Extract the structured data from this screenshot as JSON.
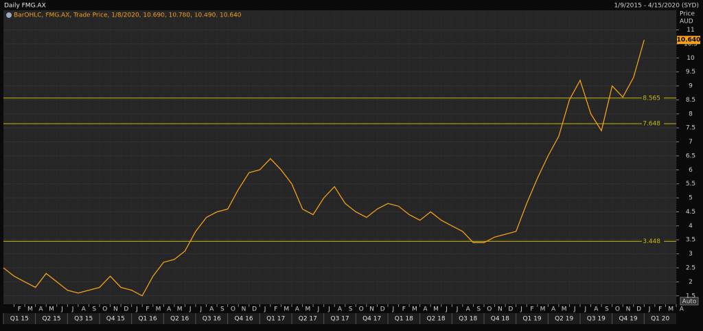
{
  "chart_data": {
    "type": "line",
    "title": "Daily FMG.AX",
    "date_range": "1/9/2015 - 4/15/2020 (SYD)",
    "legend_text": "BarOHLC, FMG.AX, Trade Price, 1/8/2020, 10.690, 10.780, 10.490, 10.640",
    "y_label": "Price",
    "y_unit": "AUD",
    "button": "Auto",
    "color": "#f5a01a",
    "level_color": "#c9b800",
    "grid": true,
    "x": [
      "2015-01",
      "2015-02",
      "2015-03",
      "2015-04",
      "2015-05",
      "2015-06",
      "2015-07",
      "2015-08",
      "2015-09",
      "2015-10",
      "2015-11",
      "2015-12",
      "2016-01",
      "2016-02",
      "2016-03",
      "2016-04",
      "2016-05",
      "2016-06",
      "2016-07",
      "2016-08",
      "2016-09",
      "2016-10",
      "2016-11",
      "2016-12",
      "2017-01",
      "2017-02",
      "2017-03",
      "2017-04",
      "2017-05",
      "2017-06",
      "2017-07",
      "2017-08",
      "2017-09",
      "2017-10",
      "2017-11",
      "2017-12",
      "2018-01",
      "2018-02",
      "2018-03",
      "2018-04",
      "2018-05",
      "2018-06",
      "2018-07",
      "2018-08",
      "2018-09",
      "2018-10",
      "2018-11",
      "2018-12",
      "2019-01",
      "2019-02",
      "2019-03",
      "2019-04",
      "2019-05",
      "2019-06",
      "2019-07",
      "2019-08",
      "2019-09",
      "2019-10",
      "2019-11",
      "2019-12",
      "2020-01"
    ],
    "values": [
      2.5,
      2.2,
      2.0,
      1.8,
      2.3,
      2.0,
      1.7,
      1.6,
      1.7,
      1.8,
      2.2,
      1.8,
      1.7,
      1.5,
      2.2,
      2.7,
      2.8,
      3.1,
      3.8,
      4.3,
      4.5,
      4.6,
      5.3,
      5.9,
      6.0,
      6.4,
      6.0,
      5.5,
      4.6,
      4.4,
      5.0,
      5.4,
      4.8,
      4.5,
      4.3,
      4.6,
      4.8,
      4.7,
      4.4,
      4.2,
      4.5,
      4.2,
      4.0,
      3.8,
      3.4,
      3.4,
      3.6,
      3.7,
      3.8,
      4.8,
      5.7,
      6.5,
      7.2,
      8.5,
      9.2,
      8.0,
      7.4,
      9.0,
      8.6,
      9.3,
      10.64
    ],
    "value_labels": [
      null,
      null,
      null,
      null,
      null,
      null,
      null,
      null,
      null,
      null,
      null,
      null,
      null,
      null,
      null,
      null,
      null,
      null,
      null,
      null,
      null,
      null,
      null,
      null,
      null,
      null,
      null,
      null,
      null,
      null,
      null,
      null,
      null,
      null,
      null,
      null,
      null,
      null,
      null,
      null,
      null,
      null,
      null,
      null,
      null,
      null,
      null,
      null,
      null,
      null,
      null,
      null,
      null,
      null,
      null,
      null,
      null,
      null,
      null,
      null,
      "10.640"
    ],
    "levels": [
      8.565,
      7.648,
      3.448
    ],
    "ylim": [
      1.2,
      11.7
    ],
    "yticks": [
      1.5,
      2,
      2.5,
      3,
      3.5,
      4,
      4.5,
      5,
      5.5,
      6,
      6.5,
      7,
      7.5,
      8,
      8.5,
      9,
      9.5,
      10,
      10.5,
      11
    ],
    "xlim": [
      "2015-01",
      "2020-04"
    ],
    "xticks": [
      {
        "value": "2015-02",
        "label": "F"
      },
      {
        "value": "2015-03",
        "label": "M"
      },
      {
        "value": "2015-04",
        "label": "A"
      },
      {
        "value": "2015-05",
        "label": "M"
      },
      {
        "value": "2015-06",
        "label": "J"
      },
      {
        "value": "2015-07",
        "label": "J"
      },
      {
        "value": "2015-08",
        "label": "A"
      },
      {
        "value": "2015-09",
        "label": "S"
      },
      {
        "value": "2015-10",
        "label": "O"
      },
      {
        "value": "2015-11",
        "label": "N"
      },
      {
        "value": "2015-12",
        "label": "D"
      },
      {
        "value": "2016-01",
        "label": "J"
      },
      {
        "value": "2016-02",
        "label": "F"
      },
      {
        "value": "2016-03",
        "label": "M"
      },
      {
        "value": "2016-04",
        "label": "A"
      },
      {
        "value": "2016-05",
        "label": "M"
      },
      {
        "value": "2016-06",
        "label": "J"
      },
      {
        "value": "2016-07",
        "label": "J"
      },
      {
        "value": "2016-08",
        "label": "A"
      },
      {
        "value": "2016-09",
        "label": "S"
      },
      {
        "value": "2016-10",
        "label": "O"
      },
      {
        "value": "2016-11",
        "label": "N"
      },
      {
        "value": "2016-12",
        "label": "D"
      },
      {
        "value": "2017-01",
        "label": "J"
      },
      {
        "value": "2017-02",
        "label": "F"
      },
      {
        "value": "2017-03",
        "label": "M"
      },
      {
        "value": "2017-04",
        "label": "A"
      },
      {
        "value": "2017-05",
        "label": "M"
      },
      {
        "value": "2017-06",
        "label": "J"
      },
      {
        "value": "2017-07",
        "label": "J"
      },
      {
        "value": "2017-08",
        "label": "A"
      },
      {
        "value": "2017-09",
        "label": "S"
      },
      {
        "value": "2017-10",
        "label": "O"
      },
      {
        "value": "2017-11",
        "label": "N"
      },
      {
        "value": "2017-12",
        "label": "D"
      },
      {
        "value": "2018-01",
        "label": "J"
      },
      {
        "value": "2018-02",
        "label": "F"
      },
      {
        "value": "2018-03",
        "label": "M"
      },
      {
        "value": "2018-04",
        "label": "A"
      },
      {
        "value": "2018-05",
        "label": "M"
      },
      {
        "value": "2018-06",
        "label": "J"
      },
      {
        "value": "2018-07",
        "label": "J"
      },
      {
        "value": "2018-08",
        "label": "A"
      },
      {
        "value": "2018-09",
        "label": "S"
      },
      {
        "value": "2018-10",
        "label": "O"
      },
      {
        "value": "2018-11",
        "label": "N"
      },
      {
        "value": "2018-12",
        "label": "D"
      },
      {
        "value": "2019-01",
        "label": "J"
      },
      {
        "value": "2019-02",
        "label": "F"
      },
      {
        "value": "2019-03",
        "label": "M"
      },
      {
        "value": "2019-04",
        "label": "A"
      },
      {
        "value": "2019-05",
        "label": "M"
      },
      {
        "value": "2019-06",
        "label": "J"
      },
      {
        "value": "2019-07",
        "label": "J"
      },
      {
        "value": "2019-08",
        "label": "A"
      },
      {
        "value": "2019-09",
        "label": "S"
      },
      {
        "value": "2019-10",
        "label": "O"
      },
      {
        "value": "2019-11",
        "label": "N"
      },
      {
        "value": "2019-12",
        "label": "D"
      },
      {
        "value": "2020-01",
        "label": "J"
      },
      {
        "value": "2020-02",
        "label": "F"
      },
      {
        "value": "2020-03",
        "label": "M"
      },
      {
        "value": "2020-04",
        "label": "A"
      }
    ],
    "quarter_ticks": [
      {
        "value": "2015-01",
        "label": "Q1 15"
      },
      {
        "value": "2015-04",
        "label": "Q2 15"
      },
      {
        "value": "2015-07",
        "label": "Q3 15"
      },
      {
        "value": "2015-10",
        "label": "Q4 15"
      },
      {
        "value": "2016-01",
        "label": "Q1 16"
      },
      {
        "value": "2016-04",
        "label": "Q2 16"
      },
      {
        "value": "2016-07",
        "label": "Q3 16"
      },
      {
        "value": "2016-10",
        "label": "Q4 16"
      },
      {
        "value": "2017-01",
        "label": "Q1 17"
      },
      {
        "value": "2017-04",
        "label": "Q2 17"
      },
      {
        "value": "2017-07",
        "label": "Q3 17"
      },
      {
        "value": "2017-10",
        "label": "Q4 17"
      },
      {
        "value": "2018-01",
        "label": "Q1 18"
      },
      {
        "value": "2018-04",
        "label": "Q2 18"
      },
      {
        "value": "2018-07",
        "label": "Q3 18"
      },
      {
        "value": "2018-10",
        "label": "Q4 18"
      },
      {
        "value": "2019-01",
        "label": "Q1 19"
      },
      {
        "value": "2019-04",
        "label": "Q2 19"
      },
      {
        "value": "2019-07",
        "label": "Q3 19"
      },
      {
        "value": "2019-10",
        "label": "Q4 19"
      },
      {
        "value": "2020-01",
        "label": "Q1 20"
      }
    ]
  }
}
